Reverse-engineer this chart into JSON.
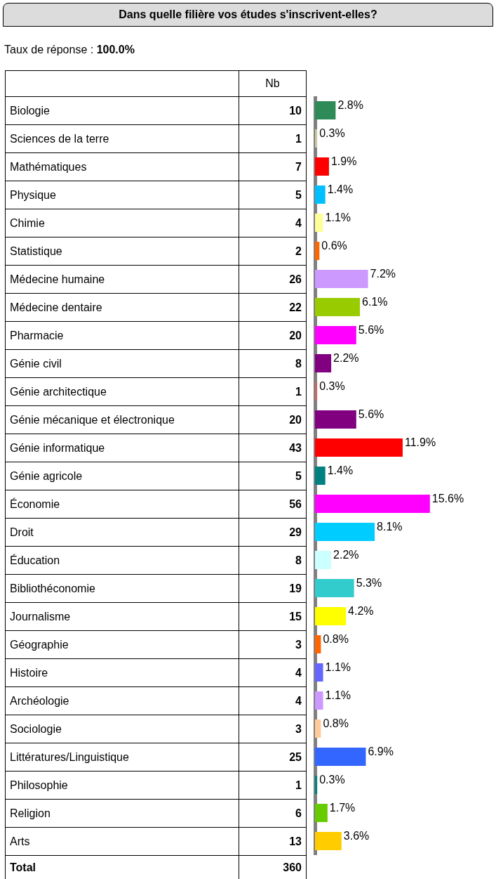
{
  "chart_data": {
    "type": "bar",
    "orientation": "horizontal",
    "title": "Dans quelle filière vos études s'inscrivent-elles?",
    "subtitle": "Taux de réponse : 100.0%",
    "categories": [
      "Biologie",
      "Sciences de la terre",
      "Mathématiques",
      "Physique",
      "Chimie",
      "Statistique",
      "Médecine humaine",
      "Médecine dentaire",
      "Pharmacie",
      "Génie civil",
      "Génie architectique",
      "Génie mécanique et électronique",
      "Génie informatique",
      "Génie agricole",
      "Économie",
      "Droit",
      "Éducation",
      "Bibliothéconomie",
      "Journalisme",
      "Géographie",
      "Histoire",
      "Archéologie",
      "Sociologie",
      "Littératures/Linguistique",
      "Philosophie",
      "Religion",
      "Arts"
    ],
    "values": [
      2.8,
      0.3,
      1.9,
      1.4,
      1.1,
      0.6,
      7.2,
      6.1,
      5.6,
      2.2,
      0.3,
      5.6,
      11.9,
      1.4,
      15.6,
      8.1,
      2.2,
      5.3,
      4.2,
      0.8,
      1.1,
      1.1,
      0.8,
      6.9,
      0.3,
      1.7,
      3.6
    ],
    "value_labels": [
      "2.8%",
      "0.3%",
      "1.9%",
      "1.4%",
      "1.1%",
      "0.6%",
      "7.2%",
      "6.1%",
      "5.6%",
      "2.2%",
      "0.3%",
      "5.6%",
      "11.9%",
      "1.4%",
      "15.6%",
      "8.1%",
      "2.2%",
      "5.3%",
      "4.2%",
      "0.8%",
      "1.1%",
      "1.1%",
      "0.8%",
      "6.9%",
      "0.3%",
      "1.7%",
      "3.6%"
    ],
    "colors": [
      "#2e8b57",
      "#c8c8a0",
      "#ff0000",
      "#00bfff",
      "#ffff99",
      "#ff6600",
      "#cc99ff",
      "#99cc00",
      "#ff00ff",
      "#800080",
      "#cc6666",
      "#800080",
      "#ff0000",
      "#008080",
      "#ff00ff",
      "#00ccff",
      "#ccffff",
      "#33cccc",
      "#ffff00",
      "#ff6600",
      "#6666ff",
      "#cc99ff",
      "#ffcc99",
      "#3366ff",
      "#008080",
      "#66cc00",
      "#ffcc00"
    ],
    "tick_labels": "y",
    "annotations": [
      "Nb",
      "10",
      "1",
      "7",
      "5",
      "4",
      "2",
      "26",
      "22",
      "20",
      "8",
      "1",
      "20",
      "43",
      "5",
      "56",
      "29",
      "8",
      "19",
      "15",
      "3",
      "4",
      "4",
      "3",
      "25",
      "1",
      "6",
      "13",
      "Total",
      "360"
    ]
  }
}
